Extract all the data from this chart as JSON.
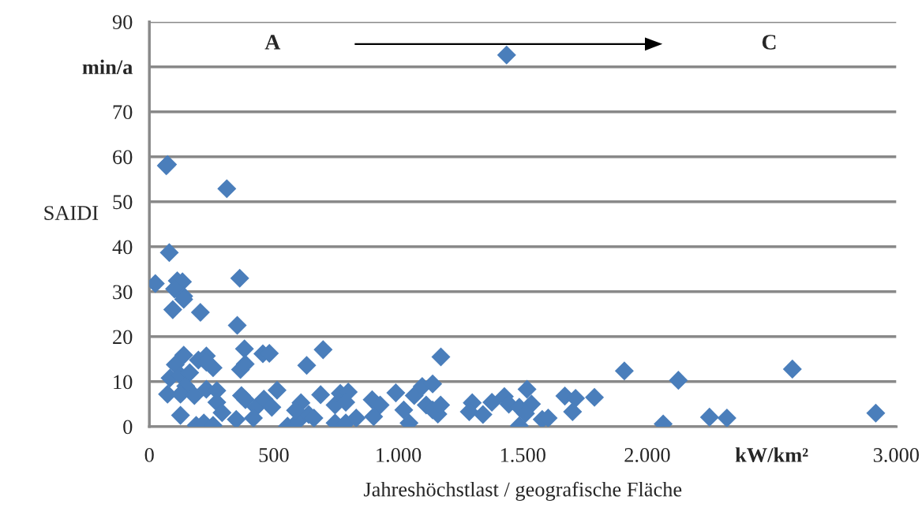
{
  "chart_data": {
    "type": "scatter",
    "xlabel": "Jahreshöchstlast / geografische Fläche",
    "ylabel": "SAIDI",
    "annotations": [
      "A",
      "C"
    ],
    "xlim": [
      0,
      3000
    ],
    "xticks": [
      0,
      500,
      {
        "value": 1000,
        "label": "1.000"
      },
      {
        "value": 1500,
        "label": "1.500"
      },
      {
        "value": 2000,
        "label": "2.000"
      },
      {
        "value": 2500,
        "label": "kW/km²"
      },
      {
        "value": 3000,
        "label": "3.000"
      }
    ],
    "ylim": [
      0,
      90
    ],
    "yticks": [
      0,
      10,
      20,
      30,
      40,
      50,
      60,
      70,
      {
        "value": 80,
        "label": "min/a"
      },
      90
    ],
    "grid": "y",
    "marker": "diamond",
    "legend": false,
    "series": [
      {
        "color": "#4a7ebb",
        "x": [
          1435,
          73,
          68,
          311,
          80,
          24,
          112,
          133,
          101,
          138,
          138,
          363,
          94,
          205,
          353,
          382,
          366,
          385,
          456,
          482,
          698,
          632,
          1171,
          138,
          104,
          83,
          73,
          125,
          162,
          146,
          125,
          197,
          229,
          256,
          229,
          181,
          229,
          271,
          271,
          292,
          125,
          188,
          219,
          256,
          349,
          370,
          386,
          429,
          460,
          492,
          418,
          513,
          555,
          598,
          609,
          640,
          661,
          587,
          688,
          746,
          767,
          799,
          789,
          746,
          789,
          831,
          895,
          927,
          901,
          990,
          1022,
          1043,
          1064,
          1096,
          1138,
          1112,
          1138,
          1159,
          1170,
          1908,
          2583,
          2125,
          2064,
          2250,
          2320,
          2918,
          1297,
          1285,
          1340,
          1376,
          1426,
          1444,
          1486,
          1517,
          1535,
          1511,
          1486,
          1578,
          1602,
          1669,
          1712,
          1700,
          1788
        ],
        "values": [
          82.6,
          58.3,
          58.0,
          52.9,
          38.7,
          31.8,
          32.4,
          32.2,
          30.6,
          29.0,
          28.3,
          33.0,
          26.0,
          25.4,
          22.5,
          17.3,
          12.7,
          13.9,
          16.2,
          16.3,
          17.1,
          13.6,
          15.5,
          15.9,
          13.8,
          10.8,
          7.2,
          11.4,
          12.0,
          9.0,
          7.2,
          14.8,
          15.7,
          13.1,
          14.3,
          6.9,
          8.3,
          8.0,
          5.4,
          3.1,
          2.5,
          0.3,
          0.8,
          0.3,
          1.6,
          6.9,
          6.0,
          4.3,
          6.1,
          4.3,
          1.9,
          8.1,
          0.1,
          1.3,
          5.3,
          2.7,
          1.9,
          3.6,
          7.1,
          4.8,
          7.4,
          7.7,
          5.4,
          0.8,
          0.8,
          1.9,
          6.0,
          4.8,
          2.2,
          7.5,
          3.7,
          0.8,
          6.9,
          8.9,
          9.5,
          4.8,
          3.7,
          2.8,
          4.8,
          12.4,
          12.8,
          10.3,
          0.6,
          2.1,
          1.9,
          3.0,
          5.3,
          3.3,
          2.7,
          5.4,
          6.7,
          5.0,
          4.3,
          8.3,
          5.0,
          2.9,
          0.2,
          1.6,
          1.9,
          6.8,
          6.3,
          3.3,
          6.5
        ]
      }
    ]
  }
}
